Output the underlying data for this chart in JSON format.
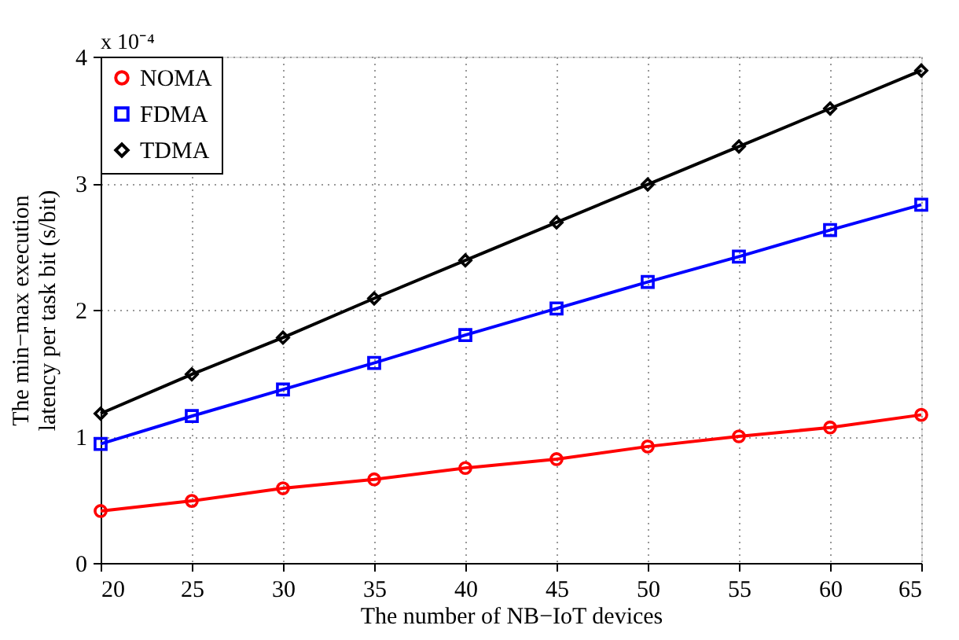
{
  "chart_data": {
    "type": "line",
    "xlabel": "The number of NB−IoT devices",
    "ylabel": "The min−max execution latency per task bit (s/bit)",
    "annotations": [
      "x 10⁻⁴"
    ],
    "x": [
      20,
      25,
      30,
      35,
      40,
      45,
      50,
      55,
      60,
      65
    ],
    "series": [
      {
        "name": "NOMA",
        "color": "#ff0000",
        "marker": "circle",
        "values": [
          0.41,
          0.49,
          0.59,
          0.66,
          0.75,
          0.82,
          0.92,
          1.0,
          1.07,
          1.17
        ]
      },
      {
        "name": "FDMA",
        "color": "#0000ff",
        "marker": "square",
        "values": [
          0.94,
          1.16,
          1.37,
          1.58,
          1.8,
          2.01,
          2.22,
          2.42,
          2.63,
          2.83
        ]
      },
      {
        "name": "TDMA",
        "color": "#000000",
        "marker": "diamond",
        "values": [
          1.18,
          1.49,
          1.78,
          2.09,
          2.39,
          2.69,
          2.99,
          3.29,
          3.59,
          3.89
        ]
      }
    ],
    "xlim": [
      20,
      65
    ],
    "xticks": [
      20,
      25,
      30,
      35,
      40,
      45,
      50,
      55,
      60,
      65
    ],
    "ylim": [
      0,
      4
    ],
    "yticks": [
      0,
      1,
      2,
      3,
      4
    ],
    "grid": true,
    "legend": "top left",
    "line_style": "solid"
  }
}
